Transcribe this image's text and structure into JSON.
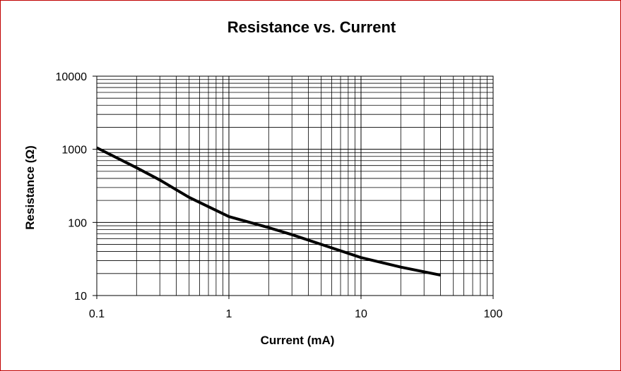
{
  "chart_data": {
    "type": "line",
    "title": "Resistance vs. Current",
    "xlabel": "Current (mA)",
    "ylabel": "Resistance (Ω)",
    "x_scale": "log",
    "y_scale": "log",
    "xlim": [
      0.1,
      100
    ],
    "ylim": [
      10,
      10000
    ],
    "x_ticks": [
      "0.1",
      "1",
      "10",
      "100"
    ],
    "y_ticks": [
      "10",
      "100",
      "1000",
      "10000"
    ],
    "grid": true,
    "legend": "none",
    "line_color": "#000000",
    "series": [
      {
        "x": [
          0.1,
          0.2,
          0.3,
          0.5,
          1,
          2,
          3,
          5,
          10,
          20,
          40
        ],
        "y": [
          1050,
          560,
          380,
          220,
          120,
          85,
          68,
          50,
          33,
          24.5,
          19
        ]
      }
    ]
  }
}
